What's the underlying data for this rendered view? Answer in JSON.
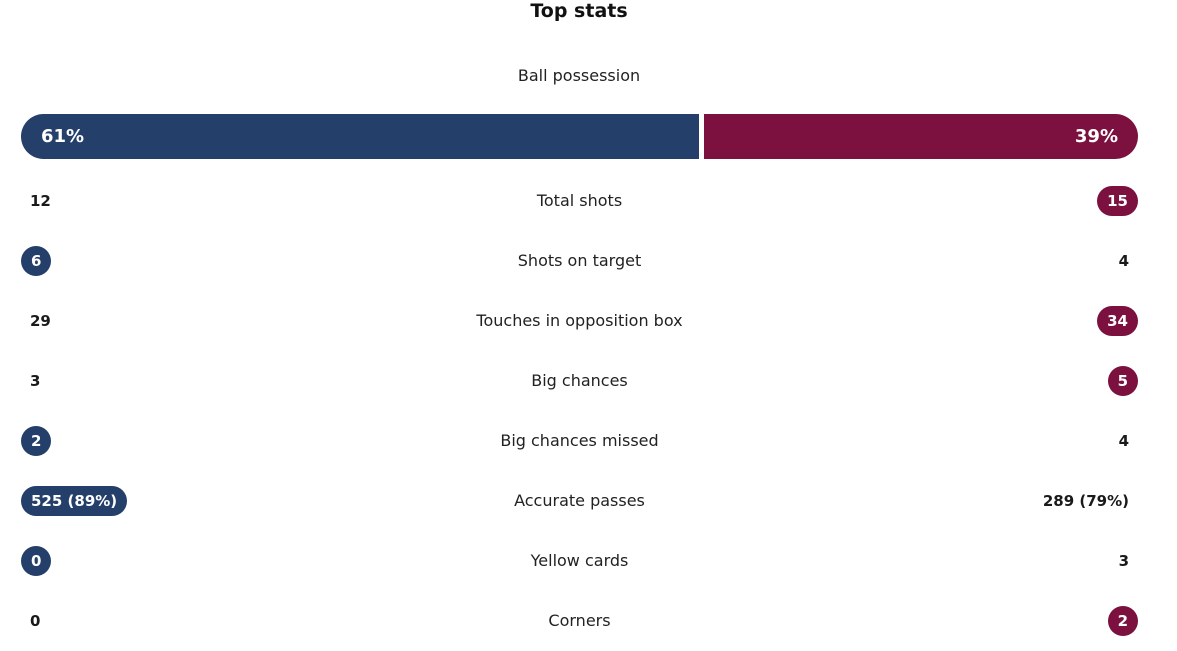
{
  "title": "Top stats",
  "colors": {
    "home": "#253f6b",
    "away": "#7c1140"
  },
  "possession": {
    "label": "Ball possession",
    "home": "61%",
    "away": "39%",
    "home_fraction": 0.61,
    "away_fraction": 0.39
  },
  "stats": [
    {
      "label": "Total shots",
      "home": "12",
      "away": "15",
      "leader": "away"
    },
    {
      "label": "Shots on target",
      "home": "6",
      "away": "4",
      "leader": "home"
    },
    {
      "label": "Touches in opposition box",
      "home": "29",
      "away": "34",
      "leader": "away"
    },
    {
      "label": "Big chances",
      "home": "3",
      "away": "5",
      "leader": "away"
    },
    {
      "label": "Big chances missed",
      "home": "2",
      "away": "4",
      "leader": "home"
    },
    {
      "label": "Accurate passes",
      "home": "525 (89%)",
      "away": "289 (79%)",
      "leader": "home"
    },
    {
      "label": "Yellow cards",
      "home": "0",
      "away": "3",
      "leader": "home"
    },
    {
      "label": "Corners",
      "home": "0",
      "away": "2",
      "leader": "away"
    }
  ]
}
